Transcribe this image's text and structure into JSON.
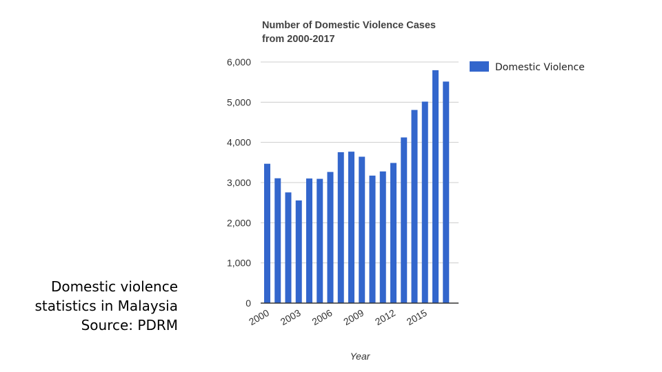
{
  "caption": {
    "line1": "Domestic violence",
    "line2": "statistics in Malaysia",
    "line3": "Source: PDRM"
  },
  "chart_data": {
    "type": "bar",
    "title_line1": "Number of Domestic Violence Cases",
    "title_line2": "from 2000-2017",
    "xlabel": "Year",
    "ylabel": "",
    "ylim": [
      0,
      6000
    ],
    "yticks": [
      0,
      1000,
      2000,
      3000,
      4000,
      5000,
      6000
    ],
    "ytick_labels": [
      "0",
      "1,000",
      "2,000",
      "3,000",
      "4,000",
      "5,000",
      "6,000"
    ],
    "grid": true,
    "legend_position": "right",
    "categories": [
      "2000",
      "2001",
      "2002",
      "2003",
      "2004",
      "2005",
      "2006",
      "2007",
      "2008",
      "2009",
      "2010",
      "2011",
      "2012",
      "2013",
      "2014",
      "2015",
      "2016",
      "2017"
    ],
    "x_tick_labels": [
      "2000",
      "2003",
      "2006",
      "2009",
      "2012",
      "2015"
    ],
    "series": [
      {
        "name": "Domestic Violence",
        "color": "#3366cc",
        "values": [
          3468,
          3107,
          2755,
          2555,
          3101,
          3093,
          3264,
          3756,
          3769,
          3643,
          3173,
          3277,
          3488,
          4123,
          4807,
          5014,
          5796,
          5513
        ]
      }
    ]
  }
}
